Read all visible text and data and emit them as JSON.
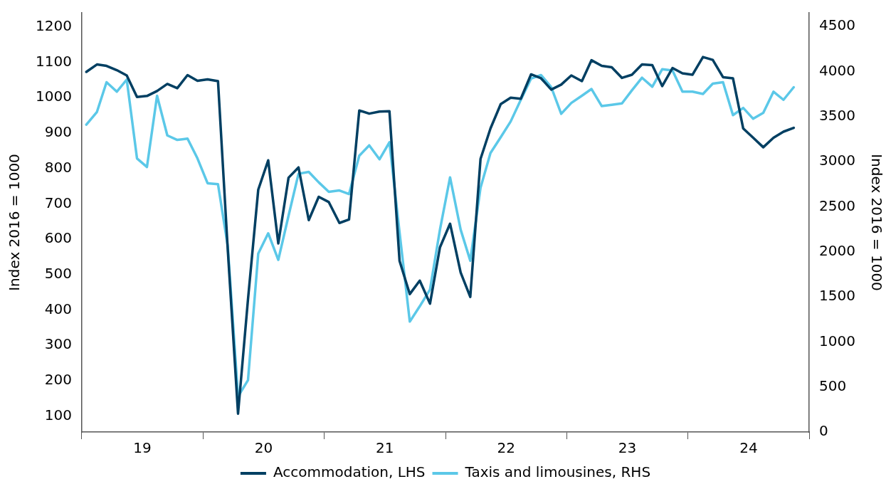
{
  "chart_data": {
    "type": "line",
    "ylabel": "Index 2016 = 1000",
    "y2label": "Index 2016 = 1000",
    "x": [
      "2019-01-15",
      "2019-02-15",
      "2019-03-15",
      "2019-04-15",
      "2019-05-15",
      "2019-06-15",
      "2019-07-15",
      "2019-08-15",
      "2019-09-15",
      "2019-10-15",
      "2019-11-15",
      "2019-12-15",
      "2020-01-15",
      "2020-02-15",
      "2020-03-15",
      "2020-04-15",
      "2020-05-15",
      "2020-06-15",
      "2020-07-15",
      "2020-08-15",
      "2020-09-15",
      "2020-10-15",
      "2020-11-15",
      "2020-12-15",
      "2021-01-15",
      "2021-02-15",
      "2021-03-15",
      "2021-04-15",
      "2021-05-15",
      "2021-06-15",
      "2021-07-15",
      "2021-08-15",
      "2021-09-15",
      "2021-10-15",
      "2021-11-15",
      "2021-12-15",
      "2022-01-15",
      "2022-02-15",
      "2022-03-15",
      "2022-04-15",
      "2022-05-15",
      "2022-06-15",
      "2022-07-15",
      "2022-08-15",
      "2022-09-15",
      "2022-10-15",
      "2022-11-15",
      "2022-12-15",
      "2023-01-15",
      "2023-02-15",
      "2023-03-15",
      "2023-04-15",
      "2023-05-15",
      "2023-06-15",
      "2023-07-15",
      "2023-08-15",
      "2023-09-15",
      "2023-10-15",
      "2023-11-15",
      "2023-12-15",
      "2024-01-15",
      "2024-02-15",
      "2024-03-15",
      "2024-04-15",
      "2024-05-15",
      "2024-06-15",
      "2024-07-15",
      "2024-08-15",
      "2024-09-15",
      "2024-10-15",
      "2024-11-15"
    ],
    "xlim": [
      "2019-01-01",
      "2025-01-01"
    ],
    "xticks": [
      {
        "value": "2019-01-01",
        "label": null
      },
      {
        "value": "2019-07-01",
        "label": "19"
      },
      {
        "value": "2020-01-01",
        "label": null
      },
      {
        "value": "2020-07-01",
        "label": "20"
      },
      {
        "value": "2021-01-01",
        "label": null
      },
      {
        "value": "2021-07-01",
        "label": "21"
      },
      {
        "value": "2022-01-01",
        "label": null
      },
      {
        "value": "2022-07-01",
        "label": "22"
      },
      {
        "value": "2023-01-01",
        "label": null
      },
      {
        "value": "2023-07-01",
        "label": "23"
      },
      {
        "value": "2024-01-01",
        "label": null
      },
      {
        "value": "2024-07-01",
        "label": "24"
      },
      {
        "value": "2025-01-01",
        "label": null
      }
    ],
    "ylim": [
      55,
      1240
    ],
    "yticks": [
      100,
      200,
      300,
      400,
      500,
      600,
      700,
      800,
      900,
      1000,
      1100,
      1200
    ],
    "y2lim": [
      0,
      4650
    ],
    "y2ticks": [
      0,
      500,
      1000,
      1500,
      2000,
      2500,
      3000,
      3500,
      4000,
      4500
    ],
    "marker": "none",
    "line_style": "solid",
    "legend": "bottom",
    "series": [
      {
        "name": "Accommodation, LHS",
        "color": "#003f62",
        "values": [
          1073,
          1094,
          1090,
          1078,
          1063,
          1002,
          1005,
          1019,
          1039,
          1027,
          1064,
          1048,
          1052,
          1047,
          570,
          107,
          430,
          740,
          823,
          588,
          774,
          803,
          654,
          720,
          705,
          646,
          656,
          964,
          955,
          961,
          962,
          539,
          445,
          483,
          418,
          577,
          644,
          506,
          437,
          827,
          913,
          982,
          1000,
          997,
          1066,
          1055,
          1023,
          1037,
          1063,
          1047,
          1106,
          1090,
          1086,
          1056,
          1065,
          1094,
          1092,
          1033,
          1084,
          1069,
          1065,
          1115,
          1107,
          1058,
          1055,
          913,
          887,
          860,
          887,
          904,
          915
        ]
      },
      {
        "name": "Taxis and limousines, RHS",
        "color": "#5bc8e8",
        "axis": "y2",
        "values": [
          3410,
          3550,
          3880,
          3775,
          3910,
          3035,
          2940,
          3730,
          3290,
          3240,
          3255,
          3035,
          2760,
          2750,
          2060,
          395,
          575,
          1980,
          2205,
          1910,
          2400,
          2865,
          2885,
          2770,
          2665,
          2680,
          2640,
          3065,
          3180,
          3025,
          3215,
          2215,
          1225,
          1395,
          1580,
          2245,
          2825,
          2245,
          1900,
          2710,
          3095,
          3270,
          3445,
          3685,
          3920,
          3960,
          3825,
          3530,
          3650,
          3730,
          3805,
          3615,
          3630,
          3645,
          3790,
          3930,
          3830,
          4025,
          4010,
          3775,
          3775,
          3750,
          3865,
          3880,
          3515,
          3595,
          3475,
          3540,
          3775,
          3685,
          3825
        ]
      }
    ]
  }
}
